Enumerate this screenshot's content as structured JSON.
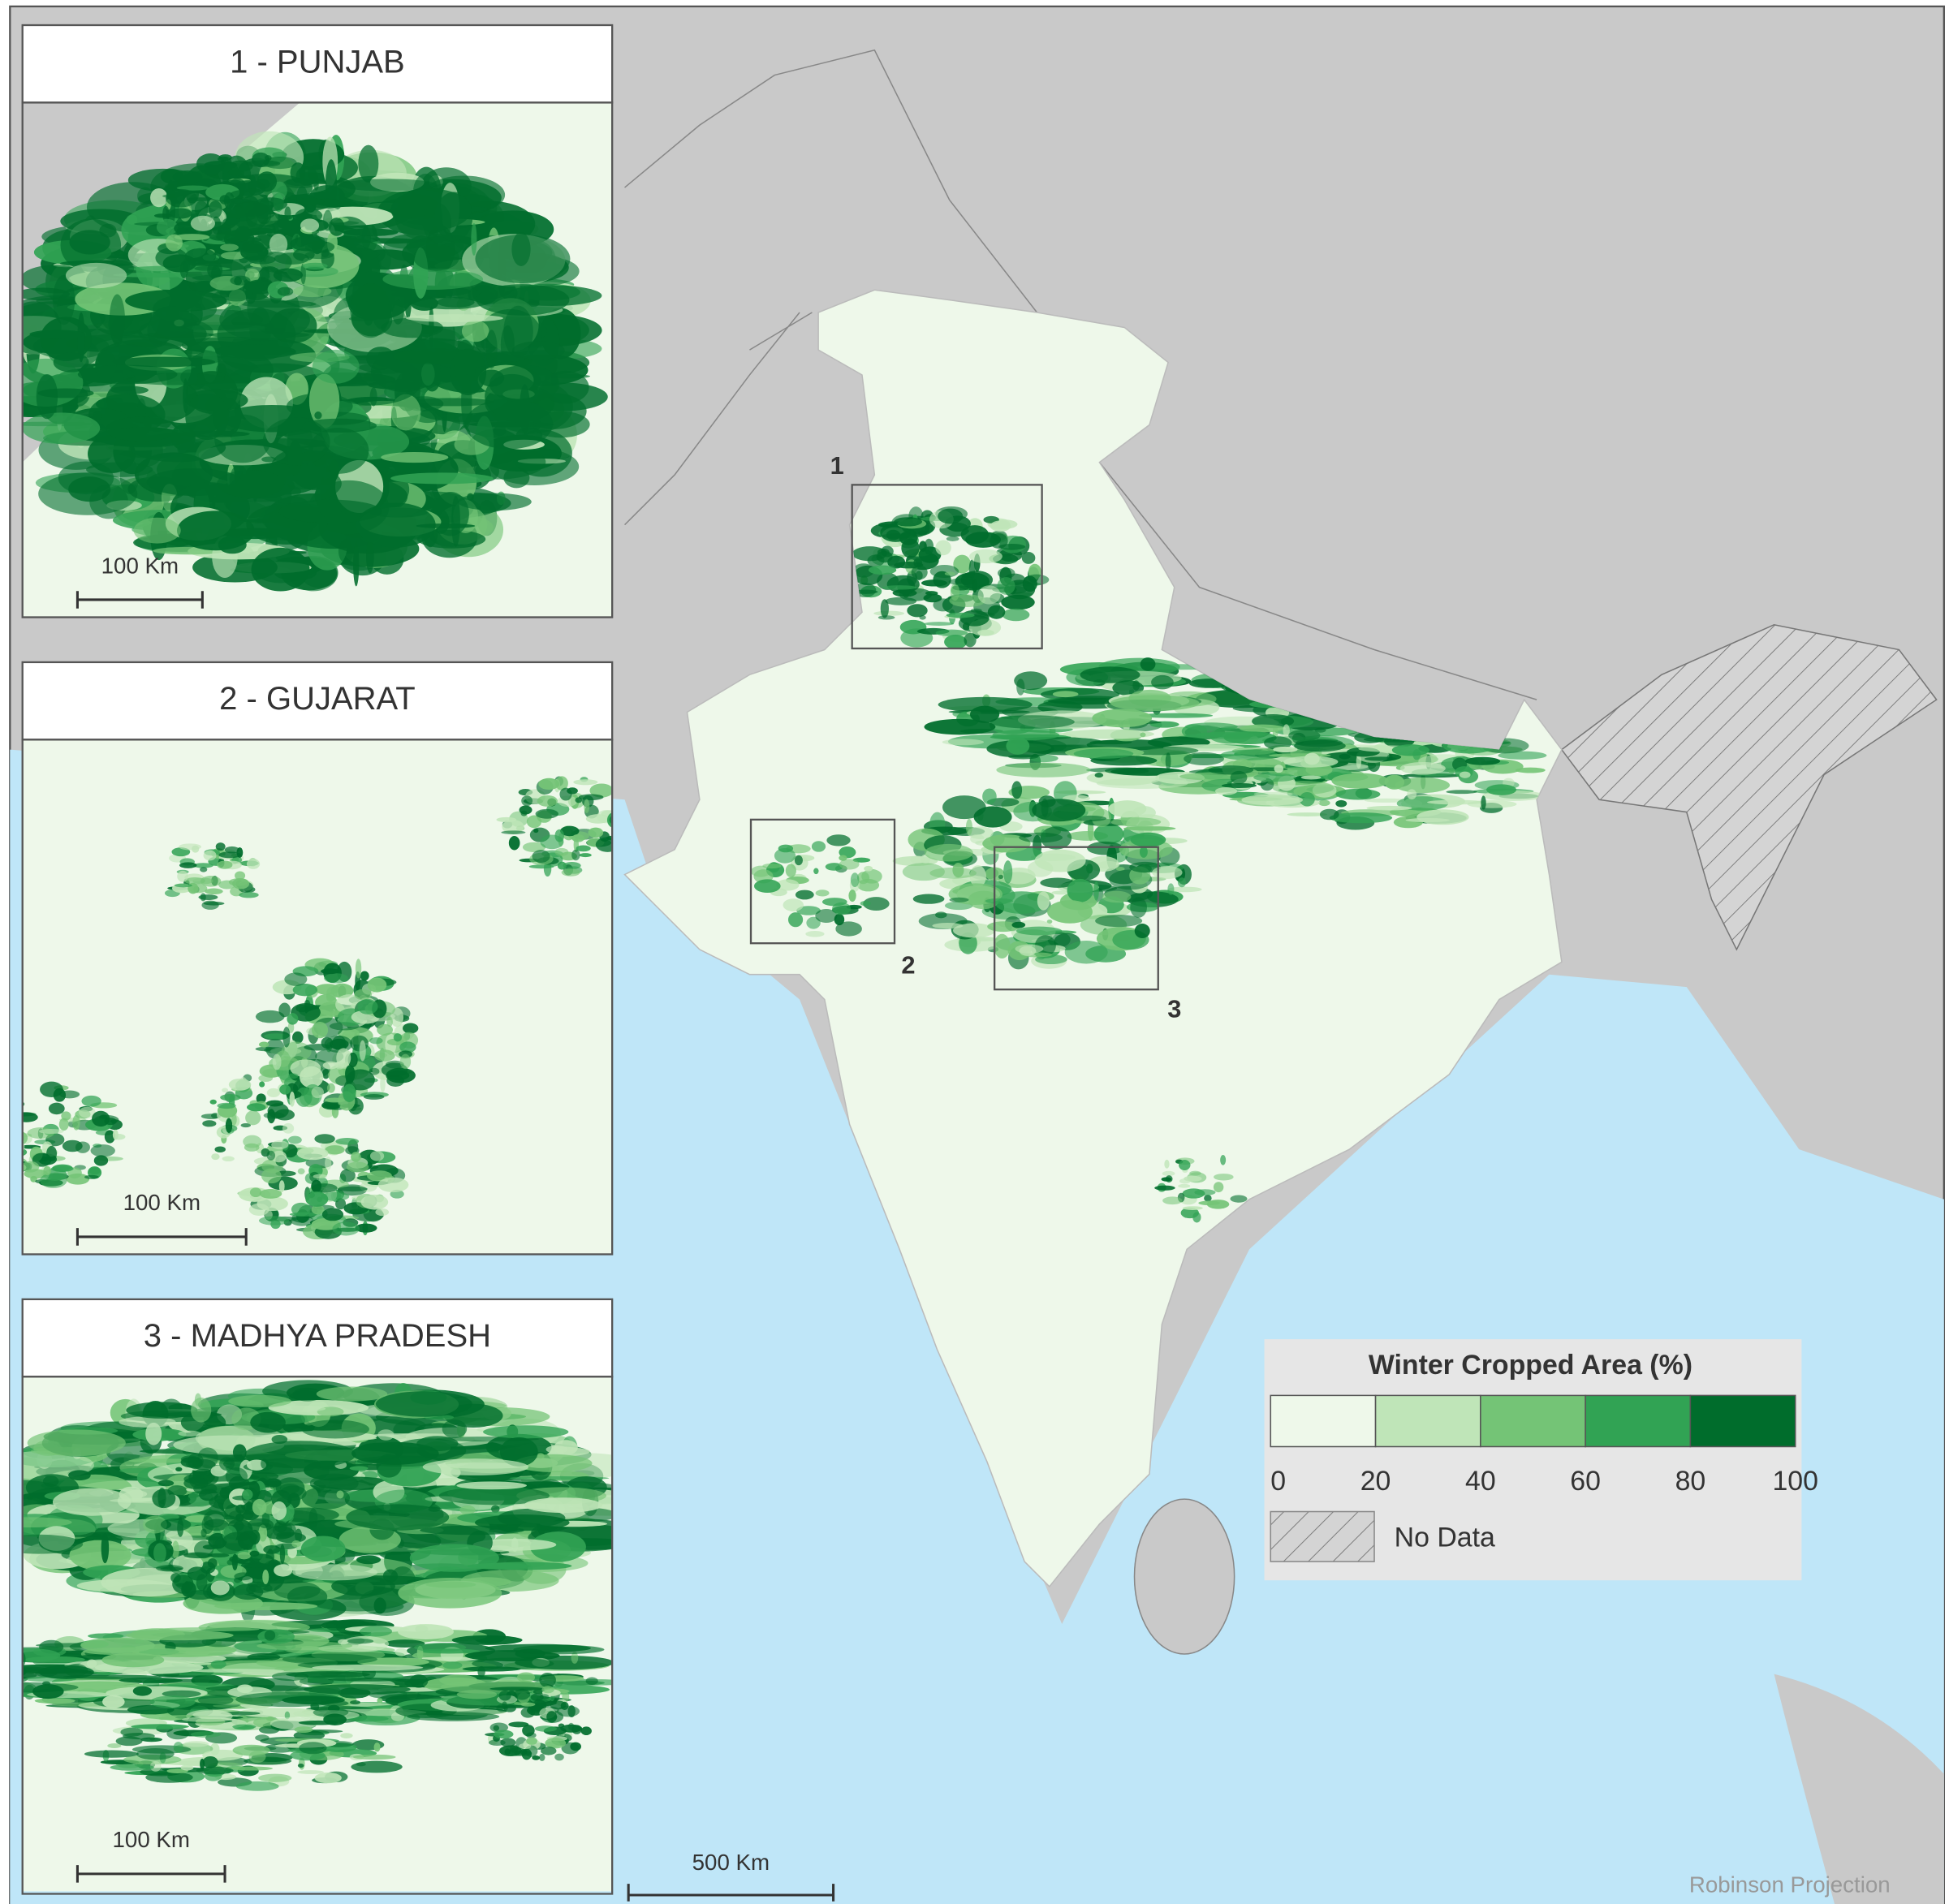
{
  "insets": [
    {
      "title": "1 - PUNJAB",
      "scale_label": "100 Km"
    },
    {
      "title": "2 - GUJARAT",
      "scale_label": "100 Km"
    },
    {
      "title": "3 - MADHYA PRADESH",
      "scale_label": "100 Km"
    }
  ],
  "main_map": {
    "box_labels": [
      "1",
      "2",
      "3"
    ],
    "scale_label": "500 Km",
    "projection": "Robinson Projection"
  },
  "legend": {
    "title": "Winter Cropped Area (%)",
    "breaks": [
      0,
      20,
      40,
      60,
      80,
      100
    ],
    "colors": [
      "#eef8ea",
      "#bfe5b8",
      "#74c476",
      "#31a354",
      "#006d2c"
    ],
    "no_data": "No Data"
  }
}
